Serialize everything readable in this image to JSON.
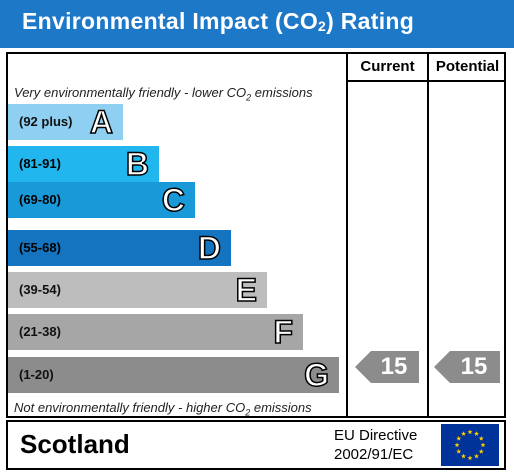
{
  "title": {
    "main": "Environmental Impact (CO",
    "sub": "2",
    "rest": ") Rating"
  },
  "columns": {
    "current": "Current",
    "potential": "Potential"
  },
  "top_note": {
    "pre": "Very environmentally friendly - lower CO",
    "sub": "2",
    "post": " emissions"
  },
  "bottom_note": {
    "pre": "Not environmentally friendly - higher CO",
    "sub": "2",
    "post": " emissions"
  },
  "bands": [
    {
      "range": "(92 plus)",
      "letter": "A",
      "color": "#8fd0f2"
    },
    {
      "range": "(81-91)",
      "letter": "B",
      "color": "#22b6ee"
    },
    {
      "range": "(69-80)",
      "letter": "C",
      "color": "#1999d8"
    },
    {
      "range": "(55-68)",
      "letter": "D",
      "color": "#1574bf"
    },
    {
      "range": "(39-54)",
      "letter": "E",
      "color": "#bdbdbd"
    },
    {
      "range": "(21-38)",
      "letter": "F",
      "color": "#a6a6a6"
    },
    {
      "range": "(1-20)",
      "letter": "G",
      "color": "#8c8c8c"
    }
  ],
  "ratings": {
    "current": {
      "value": "15",
      "band": "G",
      "color": "#8c8c8c"
    },
    "potential": {
      "value": "15",
      "band": "G",
      "color": "#8c8c8c"
    }
  },
  "footer": {
    "region": "Scotland",
    "directive_line1": "EU Directive",
    "directive_line2": "2002/91/EC"
  },
  "flag": {
    "background": "#003399",
    "stars": "#ffcc00",
    "icon": "eu-flag-icon"
  }
}
